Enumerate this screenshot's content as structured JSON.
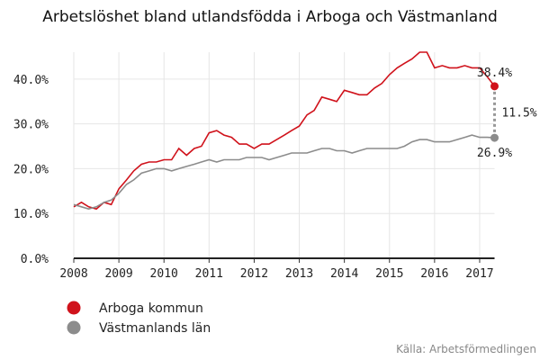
{
  "chart_data": {
    "type": "line",
    "title": "Arbetslöshet bland utlandsfödda i Arboga och Västmanland",
    "source": "Källa: Arbetsförmedlingen",
    "x": [
      2008.0,
      2008.17,
      2008.33,
      2008.5,
      2008.67,
      2008.83,
      2009.0,
      2009.17,
      2009.33,
      2009.5,
      2009.67,
      2009.83,
      2010.0,
      2010.17,
      2010.33,
      2010.5,
      2010.67,
      2010.83,
      2011.0,
      2011.17,
      2011.33,
      2011.5,
      2011.67,
      2011.83,
      2012.0,
      2012.17,
      2012.33,
      2012.5,
      2012.67,
      2012.83,
      2013.0,
      2013.17,
      2013.33,
      2013.5,
      2013.67,
      2013.83,
      2014.0,
      2014.17,
      2014.33,
      2014.5,
      2014.67,
      2014.83,
      2015.0,
      2015.17,
      2015.33,
      2015.5,
      2015.67,
      2015.83,
      2016.0,
      2016.17,
      2016.33,
      2016.5,
      2016.67,
      2016.83,
      2017.0,
      2017.17,
      2017.33
    ],
    "series": [
      {
        "name": "Arboga kommun",
        "color": "#d0121b",
        "last_label": "38.4%",
        "values": [
          11.5,
          12.5,
          11.5,
          11.0,
          12.5,
          12.0,
          15.5,
          17.5,
          19.5,
          21.0,
          21.5,
          21.5,
          22.0,
          22.0,
          24.5,
          23.0,
          24.5,
          25.0,
          28.0,
          28.5,
          27.5,
          27.0,
          25.5,
          25.5,
          24.5,
          25.5,
          25.5,
          26.5,
          27.5,
          28.5,
          29.5,
          32.0,
          33.0,
          36.0,
          35.5,
          35.0,
          37.5,
          37.0,
          36.5,
          36.5,
          38.0,
          39.0,
          41.0,
          42.5,
          43.5,
          44.5,
          46.0,
          46.0,
          42.5,
          43.0,
          42.5,
          42.5,
          43.0,
          42.5,
          42.5,
          40.5,
          38.4
        ]
      },
      {
        "name": "Västmanlands län",
        "color": "#8c8c8c",
        "last_label": "26.9%",
        "values": [
          12.0,
          11.5,
          11.0,
          11.5,
          12.5,
          13.0,
          14.5,
          16.5,
          17.5,
          19.0,
          19.5,
          20.0,
          20.0,
          19.5,
          20.0,
          20.5,
          21.0,
          21.5,
          22.0,
          21.5,
          22.0,
          22.0,
          22.0,
          22.5,
          22.5,
          22.5,
          22.0,
          22.5,
          23.0,
          23.5,
          23.5,
          23.5,
          24.0,
          24.5,
          24.5,
          24.0,
          24.0,
          23.5,
          24.0,
          24.5,
          24.5,
          24.5,
          24.5,
          24.5,
          25.0,
          26.0,
          26.5,
          26.5,
          26.0,
          26.0,
          26.0,
          26.5,
          27.0,
          27.5,
          27.0,
          27.0,
          26.9
        ]
      }
    ],
    "gap_label": "11.5%",
    "xlim": [
      2008,
      2017.33
    ],
    "xticks": [
      2008,
      2009,
      2010,
      2011,
      2012,
      2013,
      2014,
      2015,
      2016,
      2017
    ],
    "ylim": [
      0,
      46
    ],
    "yticks": [
      {
        "value": 0,
        "label": "0.0%"
      },
      {
        "value": 10,
        "label": "10.0%"
      },
      {
        "value": 20,
        "label": "20.0%"
      },
      {
        "value": 30,
        "label": "30.0%"
      },
      {
        "value": 40,
        "label": "40.0%"
      }
    ],
    "grid": true
  }
}
